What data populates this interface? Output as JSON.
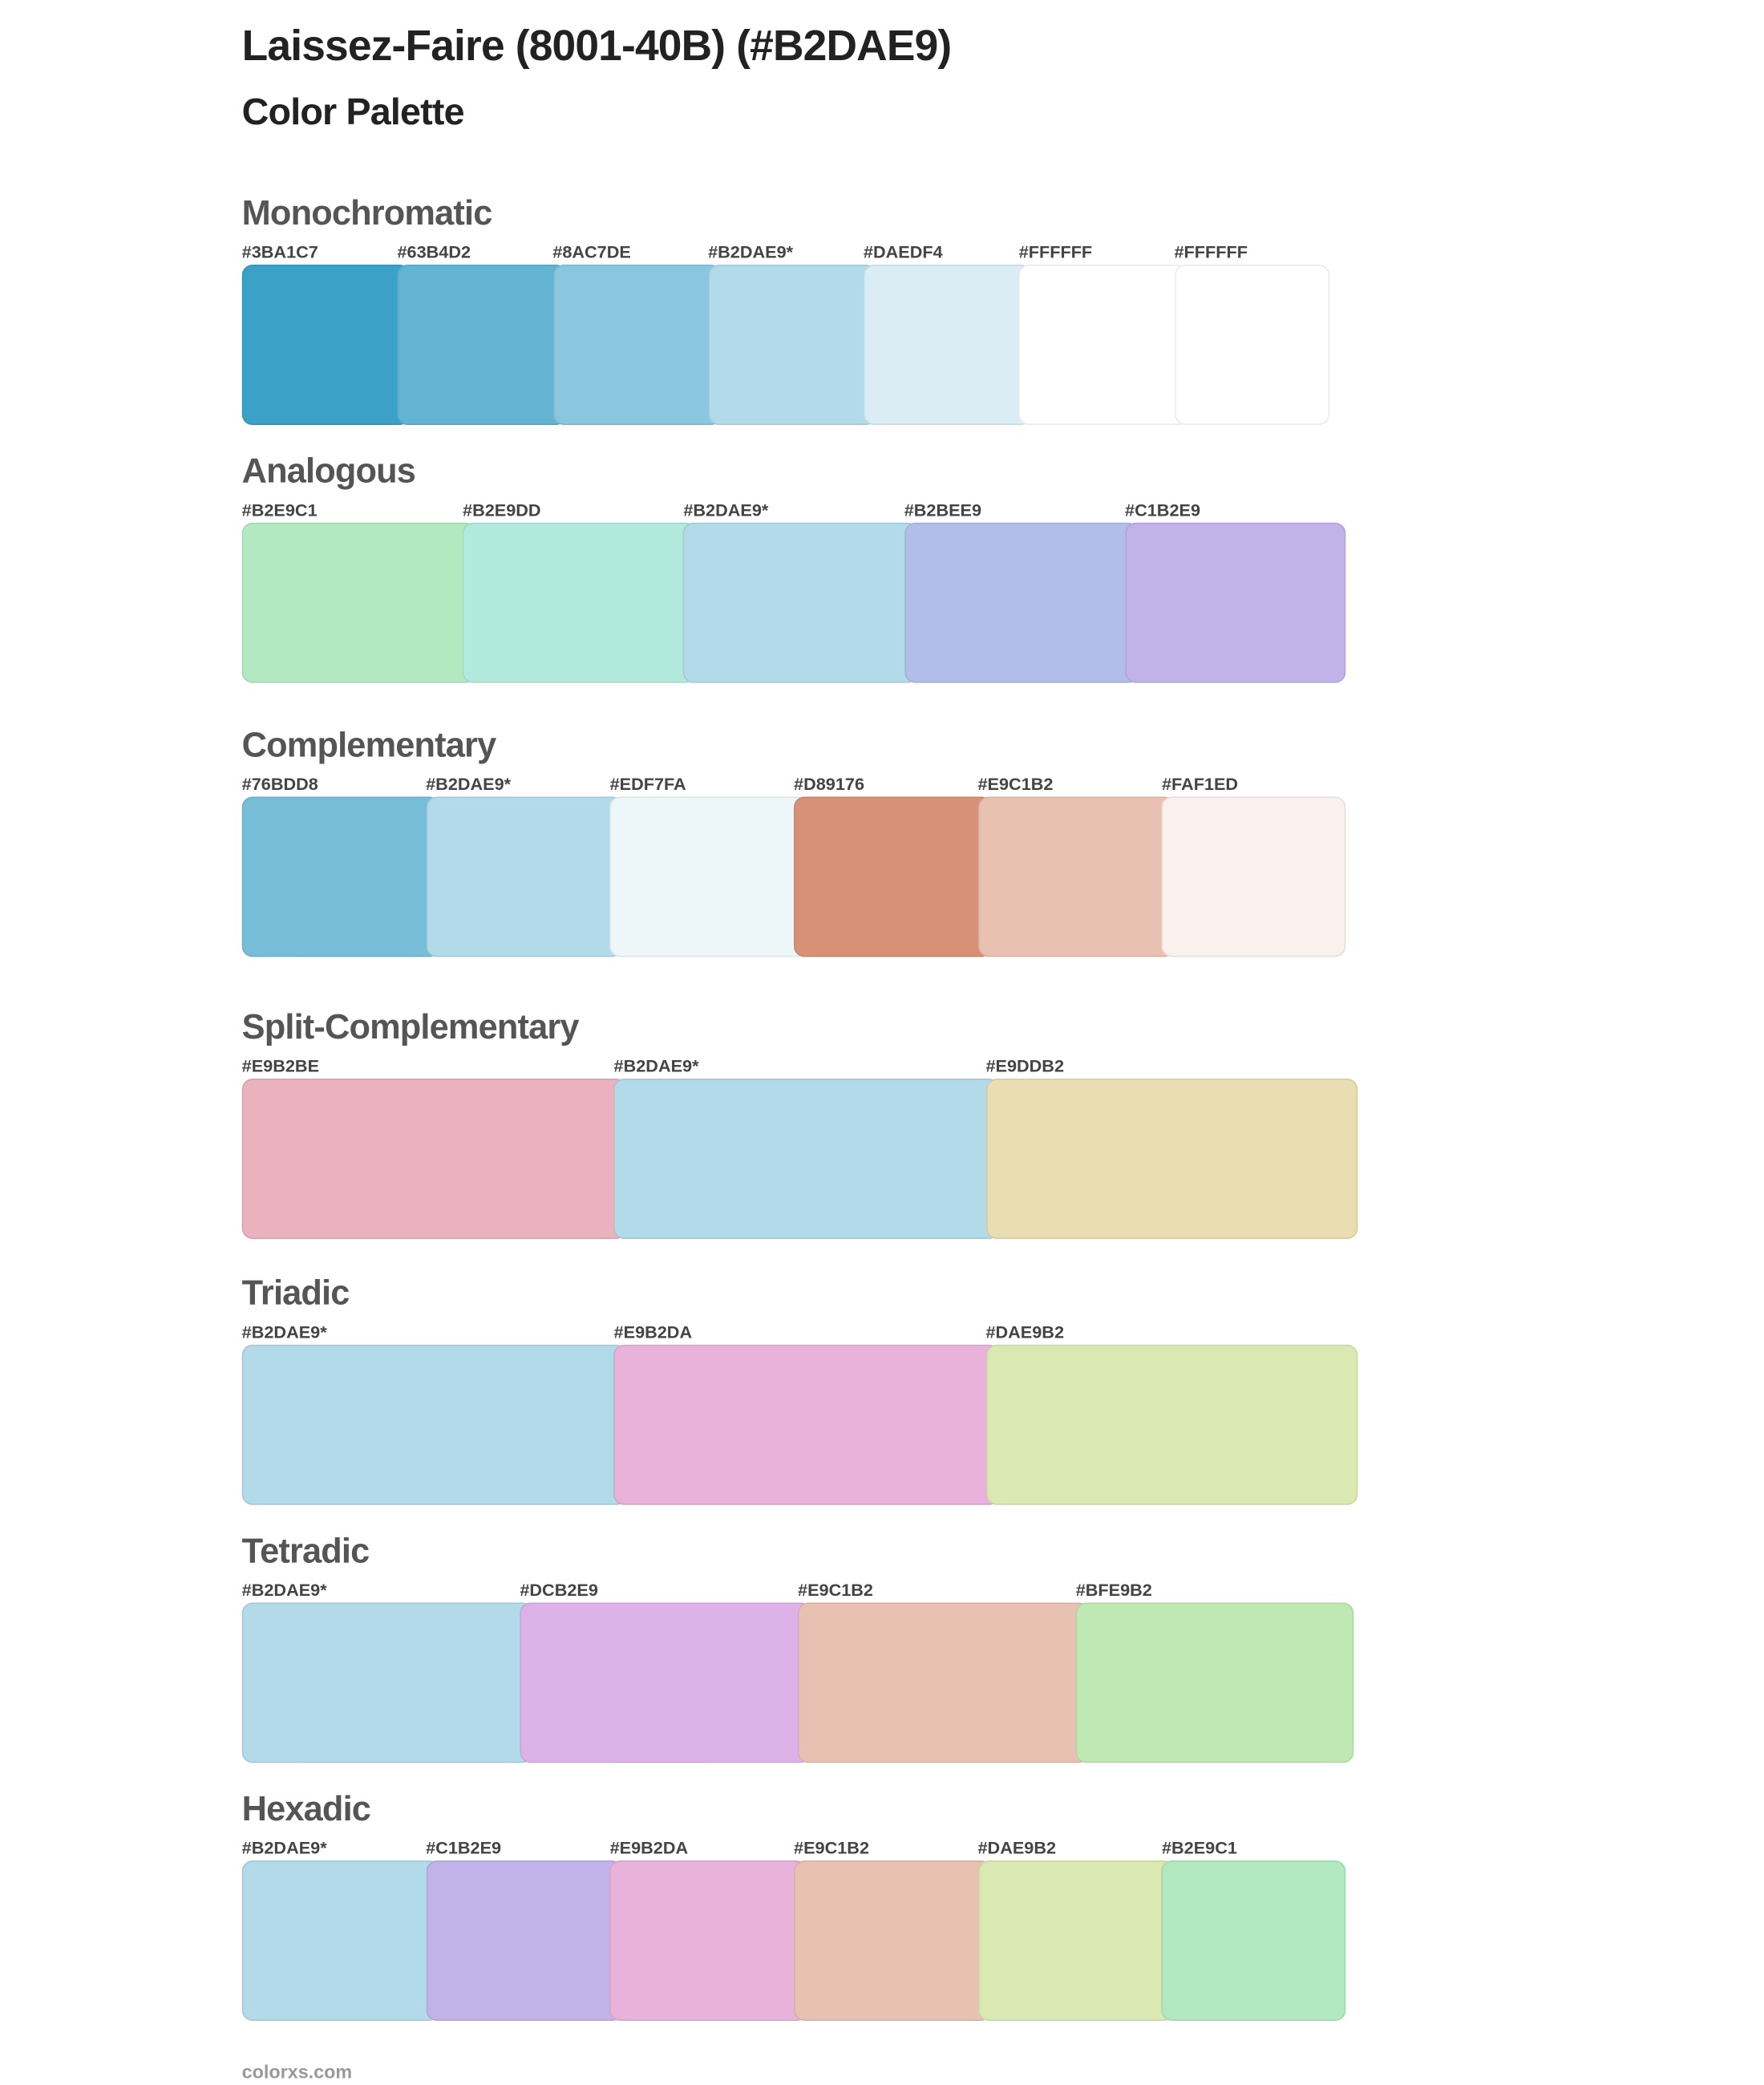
{
  "header": {
    "title": "Laissez-Faire (8001-40B) (#B2DAE9)",
    "subtitle": "Color Palette"
  },
  "sections": [
    {
      "name": "Monochromatic",
      "colors": [
        {
          "label": "#3BA1C7",
          "hex": "#3BA1C7"
        },
        {
          "label": "#63B4D2",
          "hex": "#63B4D2"
        },
        {
          "label": "#8AC7DE",
          "hex": "#8AC7DE"
        },
        {
          "label": "#B2DAE9*",
          "hex": "#B2DAE9"
        },
        {
          "label": "#DAEDF4",
          "hex": "#DAEDF4"
        },
        {
          "label": "#FFFFFF",
          "hex": "#FFFFFF"
        },
        {
          "label": "#FFFFFF",
          "hex": "#FFFFFF"
        }
      ]
    },
    {
      "name": "Analogous",
      "colors": [
        {
          "label": "#B2E9C1",
          "hex": "#B2E9C1"
        },
        {
          "label": "#B2E9DD",
          "hex": "#B2E9DD"
        },
        {
          "label": "#B2DAE9*",
          "hex": "#B2DAE9"
        },
        {
          "label": "#B2BEE9",
          "hex": "#B2BEE9"
        },
        {
          "label": "#C1B2E9",
          "hex": "#C1B2E9"
        }
      ]
    },
    {
      "name": "Complementary",
      "colors": [
        {
          "label": "#76BDD8",
          "hex": "#76BDD8"
        },
        {
          "label": "#B2DAE9*",
          "hex": "#B2DAE9"
        },
        {
          "label": "#EDF7FA",
          "hex": "#EDF7FA"
        },
        {
          "label": "#D89176",
          "hex": "#D89176"
        },
        {
          "label": "#E9C1B2",
          "hex": "#E9C1B2"
        },
        {
          "label": "#FAF1ED",
          "hex": "#FAF1ED"
        }
      ]
    },
    {
      "name": "Split-Complementary",
      "colors": [
        {
          "label": "#E9B2BE",
          "hex": "#E9B2BE"
        },
        {
          "label": "#B2DAE9*",
          "hex": "#B2DAE9"
        },
        {
          "label": "#E9DDB2",
          "hex": "#E9DDB2"
        }
      ]
    },
    {
      "name": "Triadic",
      "colors": [
        {
          "label": "#B2DAE9*",
          "hex": "#B2DAE9"
        },
        {
          "label": "#E9B2DA",
          "hex": "#E9B2DA"
        },
        {
          "label": "#DAE9B2",
          "hex": "#DAE9B2"
        }
      ]
    },
    {
      "name": "Tetradic",
      "colors": [
        {
          "label": "#B2DAE9*",
          "hex": "#B2DAE9"
        },
        {
          "label": "#DCB2E9",
          "hex": "#DCB2E9"
        },
        {
          "label": "#E9C1B2",
          "hex": "#E9C1B2"
        },
        {
          "label": "#BFE9B2",
          "hex": "#BFE9B2"
        }
      ]
    },
    {
      "name": "Hexadic",
      "colors": [
        {
          "label": "#B2DAE9*",
          "hex": "#B2DAE9"
        },
        {
          "label": "#C1B2E9",
          "hex": "#C1B2E9"
        },
        {
          "label": "#E9B2DA",
          "hex": "#E9B2DA"
        },
        {
          "label": "#E9C1B2",
          "hex": "#E9C1B2"
        },
        {
          "label": "#DAE9B2",
          "hex": "#DAE9B2"
        },
        {
          "label": "#B2E9C1",
          "hex": "#B2E9C1"
        }
      ]
    }
  ],
  "footer": {
    "site": "colorxs.com"
  }
}
